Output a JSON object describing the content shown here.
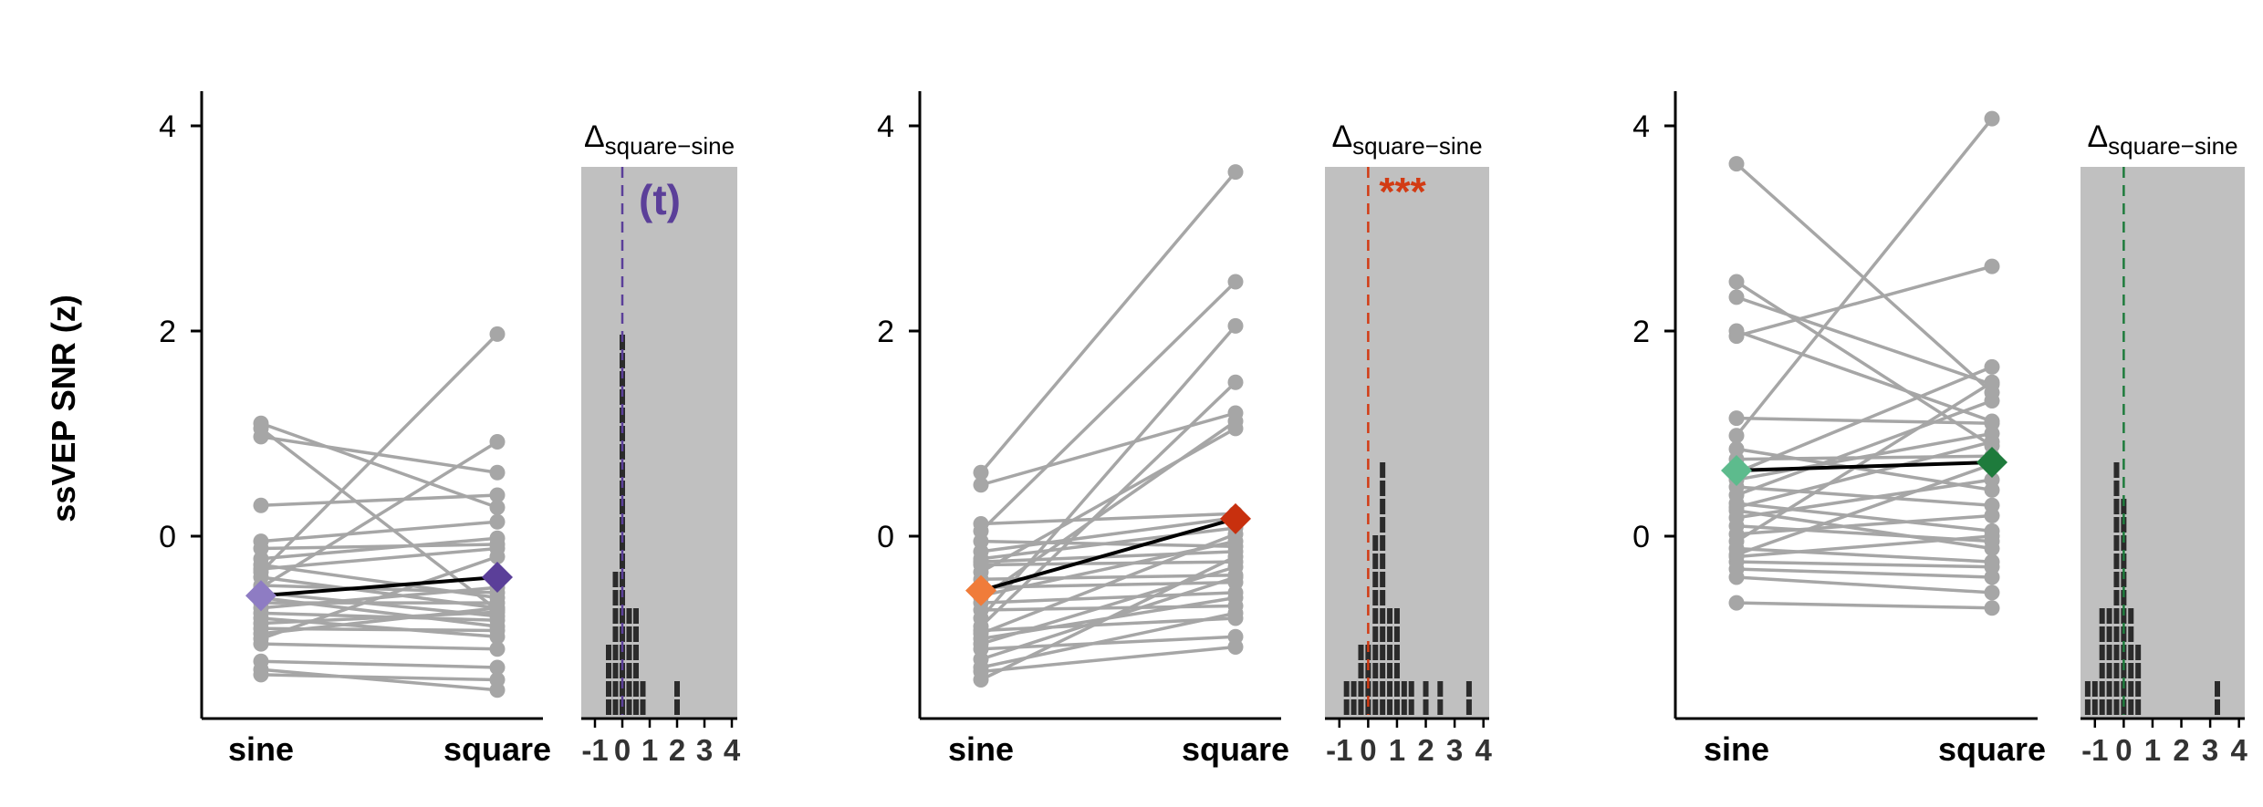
{
  "chart_data": {
    "type": "scatter",
    "ylabel": "ssVEP SNR (z)",
    "ylim": [
      -1.8,
      4.3
    ],
    "yticks": [
      0,
      2,
      4
    ],
    "yticklabels": [
      "0",
      "2",
      "4"
    ],
    "categories": [
      "sine",
      "square"
    ],
    "hist_xticks": [
      -1,
      0,
      1,
      2,
      3,
      4
    ],
    "hist_xticklabels": [
      "-1",
      "0",
      "1",
      "2",
      "3",
      "4"
    ],
    "hist_xlim": [
      -1.5,
      4.2
    ],
    "panels": [
      {
        "color_sine": "#8e7cc3",
        "color_square": "#5b3f99",
        "sig_color": "#5b3f99",
        "significance": "(t)",
        "delta_main": "Δ",
        "delta_sub": "square−sine",
        "mean": {
          "sine": -0.58,
          "square": -0.4
        },
        "pairs": [
          [
            1.1,
            0.28
          ],
          [
            1.05,
            -0.72
          ],
          [
            0.97,
            0.62
          ],
          [
            0.3,
            0.4
          ],
          [
            -0.05,
            0.14
          ],
          [
            -0.12,
            -0.08
          ],
          [
            -0.22,
            -0.02
          ],
          [
            -0.28,
            -0.6
          ],
          [
            -0.32,
            -0.12
          ],
          [
            -0.4,
            -0.7
          ],
          [
            -0.48,
            -0.55
          ],
          [
            -0.55,
            -0.78
          ],
          [
            -0.6,
            -0.88
          ],
          [
            -0.65,
            -0.65
          ],
          [
            -0.7,
            -0.5
          ],
          [
            -0.75,
            -0.82
          ],
          [
            -0.8,
            -0.98
          ],
          [
            -0.85,
            -0.74
          ],
          [
            -0.9,
            -0.92
          ],
          [
            -0.95,
            -0.7
          ],
          [
            -1.0,
            -0.2
          ],
          [
            -1.05,
            -1.1
          ],
          [
            -1.22,
            -1.28
          ],
          [
            -1.3,
            -1.5
          ],
          [
            -1.35,
            -1.4
          ],
          [
            -0.35,
            1.97
          ],
          [
            -0.5,
            0.92
          ]
        ],
        "hist": [
          {
            "x": -0.5,
            "count": 4
          },
          {
            "x": -0.25,
            "count": 8
          },
          {
            "x": 0,
            "count": 21
          },
          {
            "x": 0.25,
            "count": 6
          },
          {
            "x": 0.5,
            "count": 6
          },
          {
            "x": 0.75,
            "count": 2
          },
          {
            "x": 2,
            "count": 2
          }
        ]
      },
      {
        "color_sine": "#f07c3a",
        "color_square": "#c8300e",
        "sig_color": "#d23b14",
        "significance": "***",
        "delta_main": "Δ",
        "delta_sub": "square−sine",
        "mean": {
          "sine": -0.53,
          "square": 0.17
        },
        "pairs": [
          [
            0.62,
            3.55
          ],
          [
            0.5,
            1.2
          ],
          [
            0.12,
            0.22
          ],
          [
            0.05,
            2.48
          ],
          [
            -0.05,
            -0.1
          ],
          [
            -0.15,
            0.18
          ],
          [
            -0.22,
            0.08
          ],
          [
            -0.28,
            -0.25
          ],
          [
            -0.35,
            1.05
          ],
          [
            -0.42,
            -0.38
          ],
          [
            -0.5,
            -0.45
          ],
          [
            -0.58,
            -0.05
          ],
          [
            -0.65,
            -0.55
          ],
          [
            -0.72,
            -0.68
          ],
          [
            -0.8,
            2.05
          ],
          [
            -0.88,
            1.5
          ],
          [
            -0.92,
            -0.8
          ],
          [
            -1.0,
            -0.6
          ],
          [
            -1.05,
            -0.3
          ],
          [
            -1.1,
            -0.98
          ],
          [
            -1.2,
            -0.4
          ],
          [
            -1.28,
            -0.75
          ],
          [
            -1.32,
            -1.08
          ],
          [
            -1.4,
            -0.2
          ],
          [
            -0.95,
            0.02
          ],
          [
            -0.25,
            -0.15
          ],
          [
            -0.6,
            1.12
          ]
        ],
        "hist": [
          {
            "x": -0.75,
            "count": 2
          },
          {
            "x": -0.5,
            "count": 2
          },
          {
            "x": -0.25,
            "count": 4
          },
          {
            "x": 0,
            "count": 4
          },
          {
            "x": 0.25,
            "count": 10
          },
          {
            "x": 0.5,
            "count": 14
          },
          {
            "x": 0.75,
            "count": 6
          },
          {
            "x": 1,
            "count": 6
          },
          {
            "x": 1.25,
            "count": 2
          },
          {
            "x": 1.5,
            "count": 2
          },
          {
            "x": 2,
            "count": 2
          },
          {
            "x": 2.5,
            "count": 2
          },
          {
            "x": 3.5,
            "count": 2
          }
        ]
      },
      {
        "color_sine": "#5dbb8d",
        "color_square": "#1e7b3c",
        "sig_color": "#1e7b3c",
        "significance": "",
        "delta_main": "Δ",
        "delta_sub": "square−sine",
        "mean": {
          "sine": 0.64,
          "square": 0.72
        },
        "pairs": [
          [
            3.63,
            1.4
          ],
          [
            2.48,
            0.88
          ],
          [
            2.33,
            1.48
          ],
          [
            2.0,
            1.12
          ],
          [
            1.95,
            2.63
          ],
          [
            1.15,
            1.1
          ],
          [
            0.98,
            4.07
          ],
          [
            0.85,
            0.45
          ],
          [
            0.75,
            0.78
          ],
          [
            0.62,
            1.65
          ],
          [
            0.48,
            0.3
          ],
          [
            0.4,
            1.32
          ],
          [
            0.32,
            0.05
          ],
          [
            0.25,
            -0.12
          ],
          [
            0.18,
            0.55
          ],
          [
            0.1,
            -0.05
          ],
          [
            0.02,
            0.2
          ],
          [
            -0.05,
            1.5
          ],
          [
            -0.12,
            -0.25
          ],
          [
            -0.18,
            0.7
          ],
          [
            -0.25,
            -0.3
          ],
          [
            -0.32,
            -0.4
          ],
          [
            -0.4,
            -0.55
          ],
          [
            -0.65,
            -0.7
          ],
          [
            0.55,
            1.0
          ],
          [
            0.28,
            0.92
          ],
          [
            -0.2,
            0.0
          ]
        ],
        "hist": [
          {
            "x": -1.25,
            "count": 2
          },
          {
            "x": -1,
            "count": 2
          },
          {
            "x": -0.75,
            "count": 6
          },
          {
            "x": -0.5,
            "count": 6
          },
          {
            "x": -0.25,
            "count": 14
          },
          {
            "x": 0,
            "count": 12
          },
          {
            "x": 0.25,
            "count": 6
          },
          {
            "x": 0.5,
            "count": 4
          },
          {
            "x": 3.25,
            "count": 2
          }
        ]
      }
    ]
  }
}
